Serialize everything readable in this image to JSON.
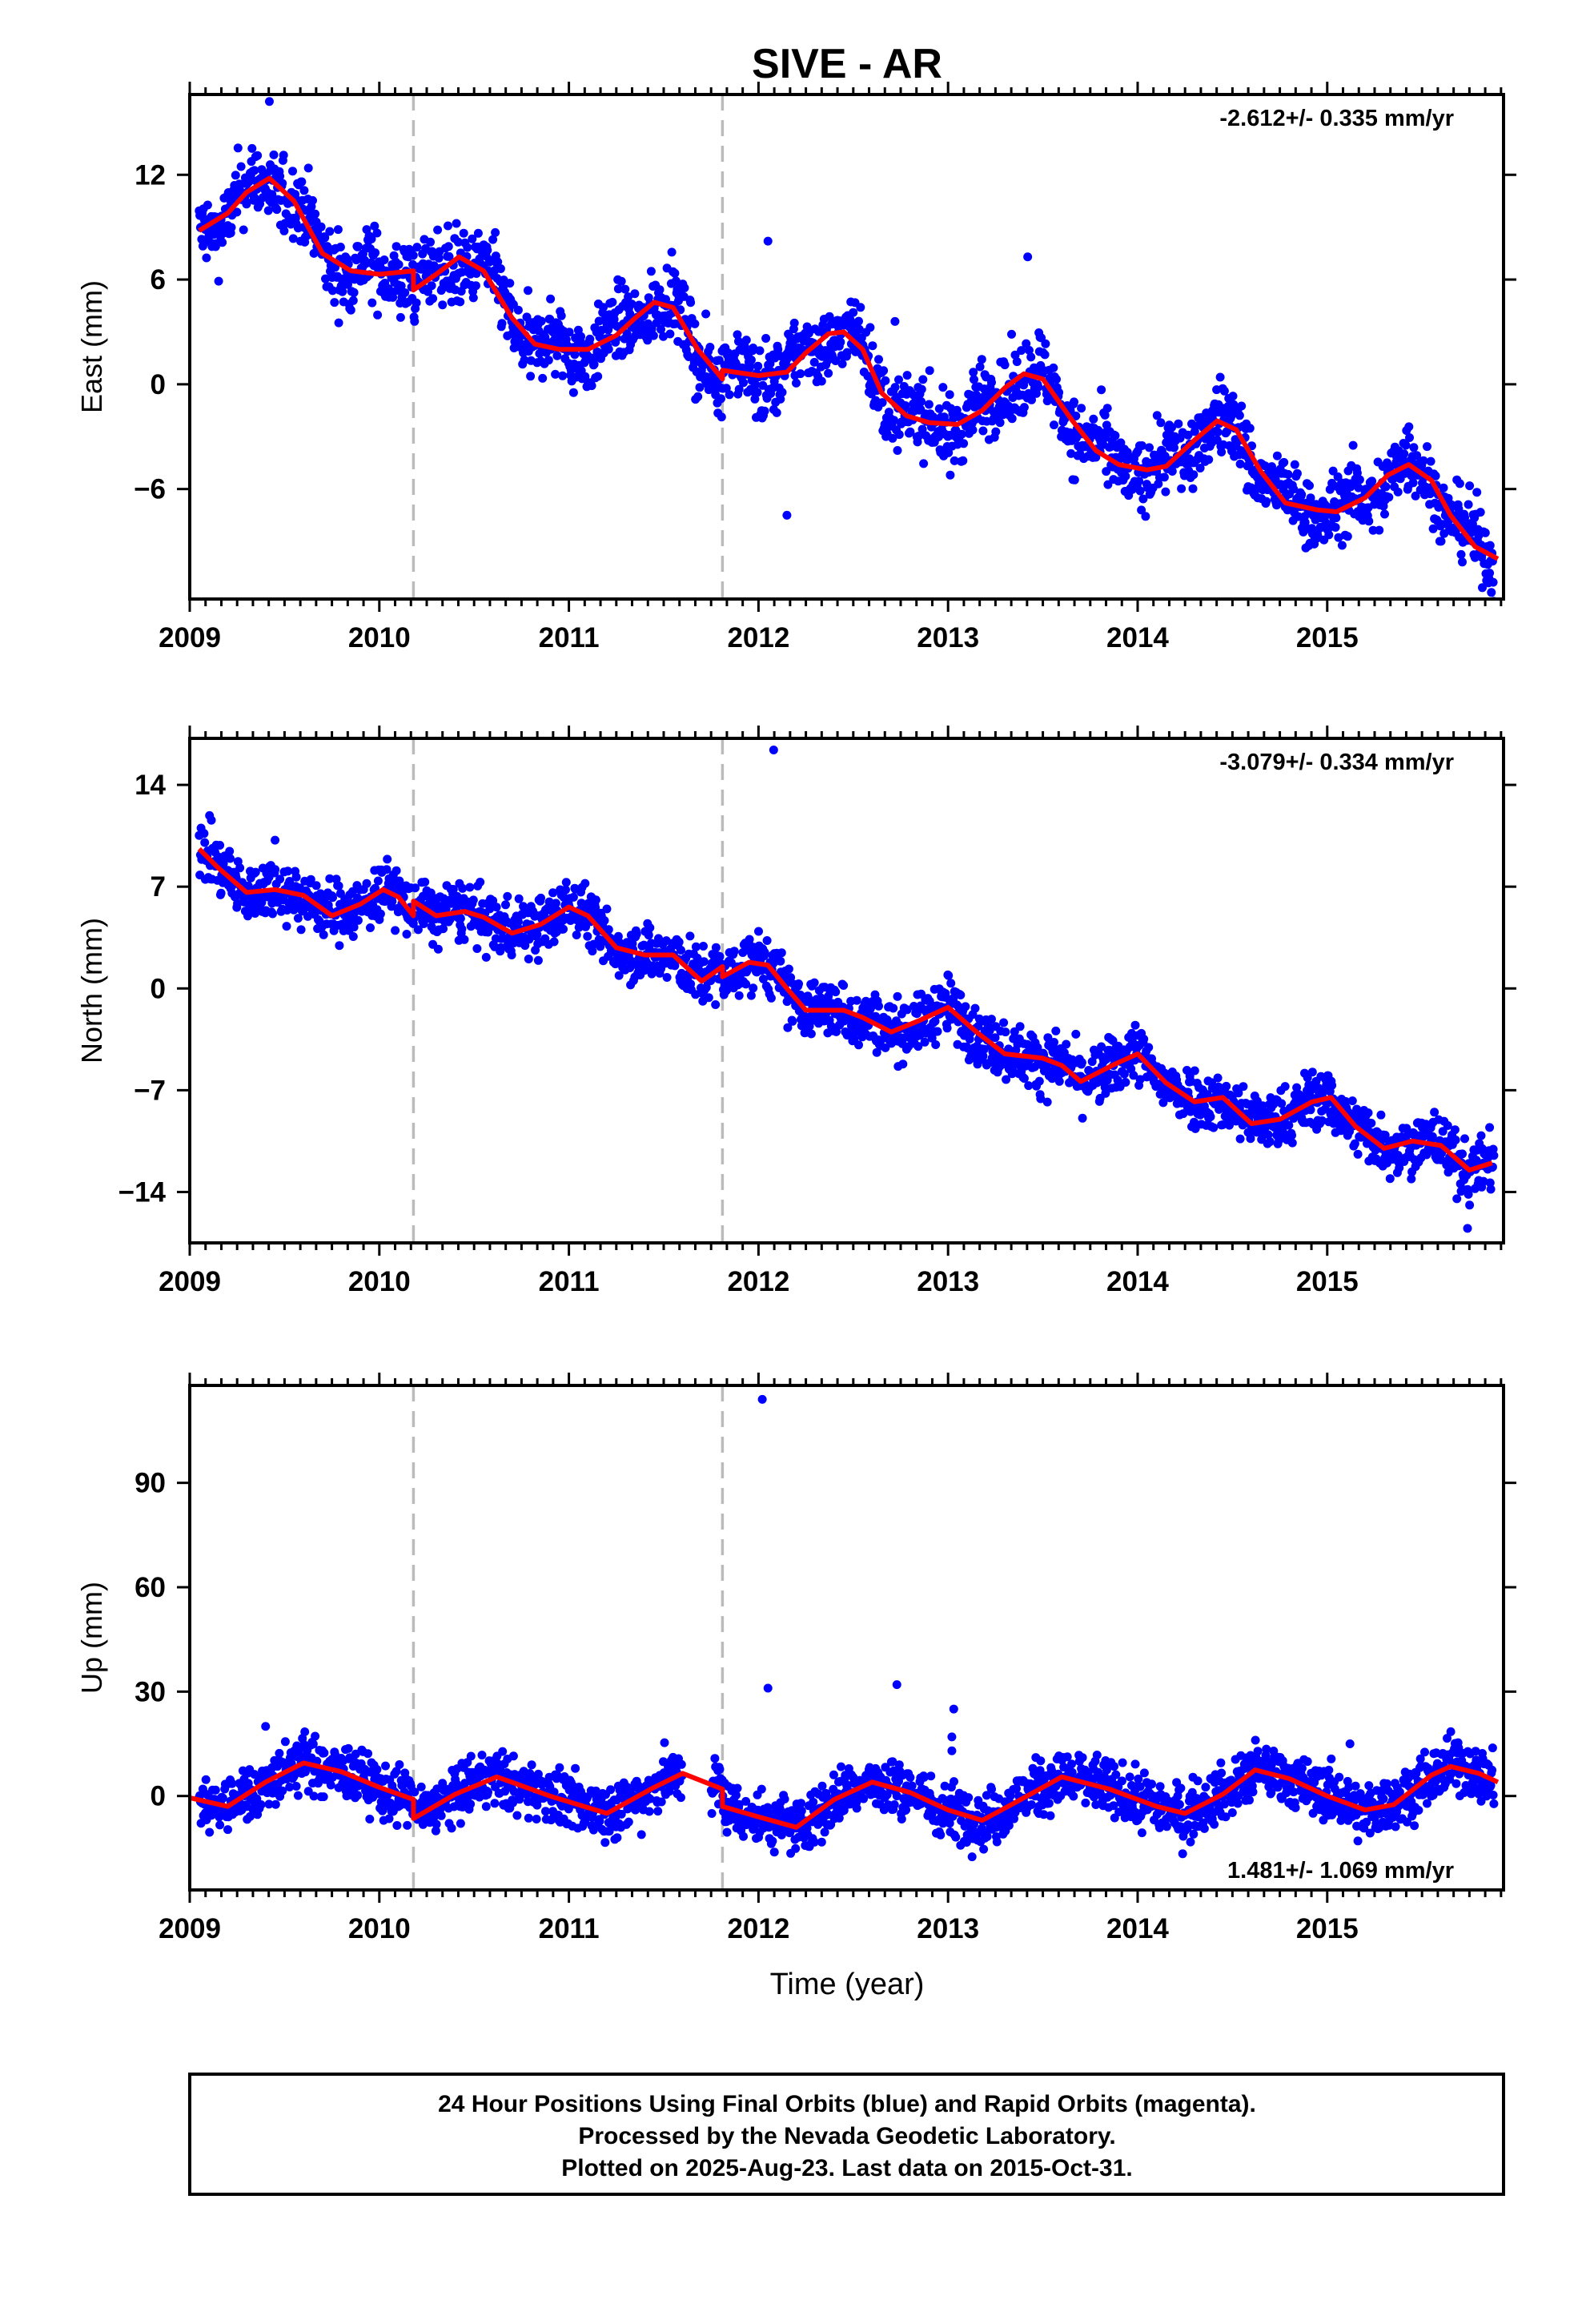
{
  "title": "SIVE - AR",
  "xlabel": "Time (year)",
  "footer": {
    "line1": "24 Hour Positions Using Final Orbits (blue) and Rapid Orbits (magenta).",
    "line2": "Processed by the Nevada Geodetic Laboratory.",
    "line3": "Plotted on 2025-Aug-23. Last data on 2015-Oct-31."
  },
  "colors": {
    "data": "#0000ff",
    "model": "#ff0000",
    "offset_line": "#bbbbbb",
    "axes": "#000000"
  },
  "chart_data": [
    {
      "type": "scatter",
      "component": "east",
      "ylabel": "East (mm)",
      "rate_label": "-2.612+/- 0.335 mm/yr",
      "xlim": [
        2009.0,
        2015.93
      ],
      "ylim": [
        -12.3,
        16.6
      ],
      "xticks": [
        2009,
        2010,
        2011,
        2012,
        2013,
        2014,
        2015
      ],
      "yticks": [
        -6,
        0,
        6,
        12
      ],
      "ytick_labels": [
        "−6",
        "0",
        "6",
        "12"
      ],
      "offsets": [
        2010.18,
        2011.81
      ],
      "model": [
        [
          2009.05,
          8.8
        ],
        [
          2009.2,
          9.8
        ],
        [
          2009.3,
          11
        ],
        [
          2009.42,
          11.8
        ],
        [
          2009.55,
          10.5
        ],
        [
          2009.7,
          7.5
        ],
        [
          2009.85,
          6.5
        ],
        [
          2010.0,
          6.3
        ],
        [
          2010.18,
          6.5
        ],
        [
          2010.18,
          5.4
        ],
        [
          2010.3,
          6.3
        ],
        [
          2010.42,
          7.3
        ],
        [
          2010.55,
          6.5
        ],
        [
          2010.7,
          3.8
        ],
        [
          2010.82,
          2.3
        ],
        [
          2010.95,
          2.0
        ],
        [
          2011.1,
          2.0
        ],
        [
          2011.25,
          2.8
        ],
        [
          2011.35,
          3.8
        ],
        [
          2011.45,
          4.7
        ],
        [
          2011.55,
          4.4
        ],
        [
          2011.68,
          2.0
        ],
        [
          2011.81,
          0.3
        ],
        [
          2011.81,
          0.8
        ],
        [
          2012.0,
          0.5
        ],
        [
          2012.15,
          0.7
        ],
        [
          2012.25,
          1.8
        ],
        [
          2012.37,
          2.9
        ],
        [
          2012.45,
          3.0
        ],
        [
          2012.55,
          2.0
        ],
        [
          2012.65,
          -0.5
        ],
        [
          2012.78,
          -1.8
        ],
        [
          2012.9,
          -2.2
        ],
        [
          2013.05,
          -2.3
        ],
        [
          2013.18,
          -1.5
        ],
        [
          2013.3,
          -0.2
        ],
        [
          2013.4,
          0.6
        ],
        [
          2013.5,
          0.3
        ],
        [
          2013.65,
          -2.0
        ],
        [
          2013.78,
          -3.8
        ],
        [
          2013.9,
          -4.6
        ],
        [
          2014.05,
          -4.9
        ],
        [
          2014.15,
          -4.7
        ],
        [
          2014.3,
          -3.2
        ],
        [
          2014.42,
          -2.1
        ],
        [
          2014.52,
          -2.6
        ],
        [
          2014.65,
          -5.0
        ],
        [
          2014.78,
          -6.8
        ],
        [
          2014.95,
          -7.2
        ],
        [
          2015.05,
          -7.3
        ],
        [
          2015.2,
          -6.5
        ],
        [
          2015.32,
          -5.2
        ],
        [
          2015.43,
          -4.6
        ],
        [
          2015.55,
          -5.5
        ],
        [
          2015.65,
          -7.5
        ],
        [
          2015.78,
          -9.3
        ],
        [
          2015.9,
          -10.0
        ]
      ],
      "seasonal": {
        "amp": 2.2,
        "phase": 0.42,
        "noise": 1.0
      },
      "outliers": [
        [
          2012.05,
          8.2
        ],
        [
          2013.42,
          7.3
        ],
        [
          2012.72,
          3.6
        ],
        [
          2009.42,
          16.2
        ],
        [
          2012.15,
          -7.5
        ]
      ]
    },
    {
      "type": "scatter",
      "component": "north",
      "ylabel": "North (mm)",
      "rate_label": "-3.079+/- 0.334 mm/yr",
      "xlim": [
        2009.0,
        2015.93
      ],
      "ylim": [
        -17.5,
        17.2
      ],
      "xticks": [
        2009,
        2010,
        2011,
        2012,
        2013,
        2014,
        2015
      ],
      "yticks": [
        -14,
        -7,
        0,
        7,
        14
      ],
      "ytick_labels": [
        "−14",
        "−7",
        "0",
        "7",
        "14"
      ],
      "offsets": [
        2010.18,
        2011.81
      ],
      "model": [
        [
          2009.05,
          9.6
        ],
        [
          2009.15,
          8.3
        ],
        [
          2009.3,
          6.6
        ],
        [
          2009.45,
          6.8
        ],
        [
          2009.6,
          6.4
        ],
        [
          2009.75,
          5.0
        ],
        [
          2009.9,
          5.8
        ],
        [
          2010.02,
          6.8
        ],
        [
          2010.1,
          6.3
        ],
        [
          2010.18,
          5.0
        ],
        [
          2010.18,
          6.0
        ],
        [
          2010.3,
          5.0
        ],
        [
          2010.45,
          5.3
        ],
        [
          2010.55,
          4.9
        ],
        [
          2010.7,
          3.8
        ],
        [
          2010.85,
          4.4
        ],
        [
          2011.0,
          5.6
        ],
        [
          2011.1,
          5.0
        ],
        [
          2011.25,
          2.8
        ],
        [
          2011.4,
          2.3
        ],
        [
          2011.55,
          2.3
        ],
        [
          2011.7,
          0.5
        ],
        [
          2011.81,
          1.5
        ],
        [
          2011.81,
          0.8
        ],
        [
          2011.95,
          1.8
        ],
        [
          2012.05,
          1.6
        ],
        [
          2012.15,
          0.0
        ],
        [
          2012.25,
          -1.5
        ],
        [
          2012.45,
          -1.5
        ],
        [
          2012.55,
          -2.0
        ],
        [
          2012.7,
          -3.0
        ],
        [
          2012.85,
          -2.2
        ],
        [
          2013.0,
          -1.3
        ],
        [
          2013.15,
          -3.0
        ],
        [
          2013.3,
          -4.5
        ],
        [
          2013.5,
          -4.8
        ],
        [
          2013.6,
          -5.3
        ],
        [
          2013.7,
          -6.4
        ],
        [
          2013.88,
          -5.2
        ],
        [
          2014.0,
          -4.5
        ],
        [
          2014.15,
          -6.5
        ],
        [
          2014.3,
          -7.8
        ],
        [
          2014.45,
          -7.5
        ],
        [
          2014.6,
          -9.3
        ],
        [
          2014.75,
          -9.0
        ],
        [
          2014.92,
          -7.8
        ],
        [
          2015.02,
          -7.5
        ],
        [
          2015.15,
          -9.5
        ],
        [
          2015.3,
          -11.0
        ],
        [
          2015.45,
          -10.5
        ],
        [
          2015.6,
          -10.8
        ],
        [
          2015.75,
          -12.5
        ],
        [
          2015.87,
          -12.0
        ]
      ],
      "seasonal": {
        "amp": 0.8,
        "phase": 0.0,
        "noise": 1.0
      },
      "outliers": [
        [
          2012.08,
          16.4
        ],
        [
          2015.74,
          -16.5
        ],
        [
          2009.45,
          10.2
        ]
      ]
    },
    {
      "type": "scatter",
      "component": "up",
      "ylabel": "Up (mm)",
      "rate_label": "1.481+/- 1.069 mm/yr",
      "xlim": [
        2009.0,
        2015.93
      ],
      "ylim": [
        -27,
        118
      ],
      "xticks": [
        2009,
        2010,
        2011,
        2012,
        2013,
        2014,
        2015
      ],
      "yticks": [
        0,
        30,
        60,
        90
      ],
      "ytick_labels": [
        "0",
        "30",
        "60",
        "90"
      ],
      "offsets": [
        2010.18,
        2011.81
      ],
      "model": [
        [
          2009.0,
          -0.5
        ],
        [
          2009.2,
          -3.0
        ],
        [
          2009.4,
          4.0
        ],
        [
          2009.6,
          9.5
        ],
        [
          2009.8,
          7.0
        ],
        [
          2010.0,
          2.5
        ],
        [
          2010.18,
          -1.0
        ],
        [
          2010.18,
          -6.5
        ],
        [
          2010.4,
          0.5
        ],
        [
          2010.62,
          5.5
        ],
        [
          2010.9,
          0.0
        ],
        [
          2011.2,
          -5.0
        ],
        [
          2011.45,
          2.5
        ],
        [
          2011.6,
          6.5
        ],
        [
          2011.81,
          2.0
        ],
        [
          2011.81,
          -3.0
        ],
        [
          2012.0,
          -6.0
        ],
        [
          2012.2,
          -9.0
        ],
        [
          2012.4,
          -1.0
        ],
        [
          2012.6,
          4.0
        ],
        [
          2012.8,
          1.0
        ],
        [
          2013.0,
          -4.0
        ],
        [
          2013.18,
          -7.0
        ],
        [
          2013.35,
          -2.0
        ],
        [
          2013.6,
          5.5
        ],
        [
          2013.85,
          2.0
        ],
        [
          2014.1,
          -3.0
        ],
        [
          2014.25,
          -5.0
        ],
        [
          2014.45,
          0.5
        ],
        [
          2014.62,
          7.5
        ],
        [
          2014.8,
          5.0
        ],
        [
          2015.0,
          0.0
        ],
        [
          2015.2,
          -4.0
        ],
        [
          2015.35,
          -2.5
        ],
        [
          2015.55,
          6.0
        ],
        [
          2015.65,
          8.5
        ],
        [
          2015.8,
          6.5
        ],
        [
          2015.9,
          4.0
        ]
      ],
      "seasonal": {
        "amp": 2.5,
        "phase": 0.6,
        "noise": 4.0
      },
      "outliers": [
        [
          2012.02,
          114
        ],
        [
          2012.05,
          31
        ],
        [
          2012.73,
          32
        ],
        [
          2013.03,
          25
        ],
        [
          2013.02,
          17
        ],
        [
          2013.02,
          13
        ],
        [
          2009.4,
          20
        ],
        [
          2015.12,
          15
        ]
      ]
    }
  ]
}
